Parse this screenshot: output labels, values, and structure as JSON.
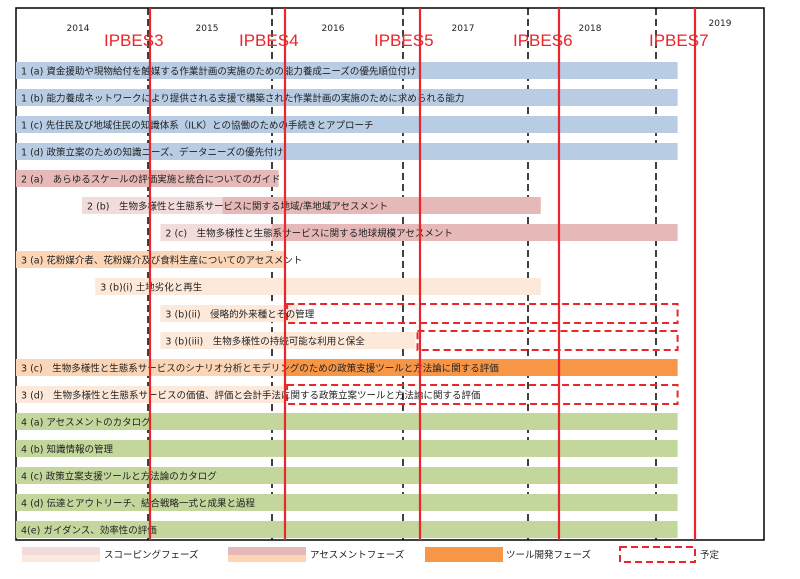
{
  "years": [
    "2014",
    "2015",
    "2016",
    "2017",
    "2018",
    "2019"
  ],
  "meetings": [
    "IPBES3",
    "IPBES4",
    "IPBES5",
    "IPBES6",
    "IPBES7"
  ],
  "colors": {
    "blue": "#b8cce4",
    "scoping_pink": "#f2dcdb",
    "assessment_pink": "#e6b9b8",
    "scoping_orange": "#fde9d9",
    "assessment_orange": "#fbd5b5",
    "tool_orange": "#f79646",
    "green": "#c3d69b",
    "planned_red": "#e8262b",
    "meeting_red": "#e8262b"
  },
  "tasks": [
    {
      "label": "1 (a) 資金援助や現物給付を触媒する作業計画の実施のための能力養成ニーズの優先順位付け",
      "color": "blue",
      "start": 2014.0,
      "end": 2019.2
    },
    {
      "label": "1 (b) 能力養成ネットワークにより提供される支援で構築された作業計画の実施のために求められる能力",
      "color": "blue",
      "start": 2014.0,
      "end": 2019.2
    },
    {
      "label": "1 (c) 先住民及び地域住民の知識体系（ILK）との協働のための手続きとアプローチ",
      "color": "blue",
      "start": 2014.0,
      "end": 2019.2
    },
    {
      "label": "1 (d) 政策立案のための知識ニーズ、データニーズの優先付け",
      "color": "blue",
      "start": 2014.0,
      "end": 2019.2
    },
    {
      "label": "2 (a)　あらゆるスケールの評価実施と統合についてのガイド",
      "color": "assessment_pink",
      "start": 2014.0,
      "end": 2016.05
    },
    {
      "label": "2 (b)　生物多様性と生態系サービスに関する地域/準地域アセスメント",
      "color": "assessment_pink",
      "start": 2014.5,
      "end": 2018.1,
      "segments": [
        {
          "color": "scoping_pink",
          "start": 2014.5,
          "end": 2015.6
        },
        {
          "color": "assessment_pink",
          "start": 2015.6,
          "end": 2018.1
        }
      ]
    },
    {
      "label": "2 (c)　生物多様性と生態系サービスに関する地球規模アセスメント",
      "color": "assessment_pink",
      "start": 2015.1,
      "end": 2019.2,
      "segments": [
        {
          "color": "scoping_pink",
          "start": 2015.1,
          "end": 2016.0
        },
        {
          "color": "assessment_pink",
          "start": 2016.0,
          "end": 2019.2
        }
      ]
    },
    {
      "label": "3 (a) 花粉媒介者、花粉媒介及び食料生産についてのアセスメント",
      "color": "assessment_orange",
      "start": 2014.0,
      "end": 2016.1
    },
    {
      "label": "3 (b)(i) 土地劣化と再生",
      "color": "scoping_orange",
      "start": 2014.6,
      "end": 2018.1
    },
    {
      "label": "3 (b)(ii)　侵略的外来種とその管理",
      "color": "scoping_orange",
      "start": 2015.1,
      "end": 2016.2,
      "planned": [
        2016.1,
        2019.2
      ]
    },
    {
      "label": "3 (b)(iii)　生物多様性の持続可能な利用と保全",
      "color": "scoping_orange",
      "start": 2015.1,
      "end": 2017.1,
      "planned": [
        2017.1,
        2019.2
      ]
    },
    {
      "label": "3 (c)　生物多様性と生態系サービスのシナリオ分析とモデリングのための政策支援ツールと方法論に関する評価",
      "color": "tool_orange",
      "start": 2014.0,
      "end": 2019.2,
      "segments": [
        {
          "color": "assessment_orange",
          "start": 2014.0,
          "end": 2016.1
        },
        {
          "color": "tool_orange",
          "start": 2016.1,
          "end": 2019.2
        }
      ]
    },
    {
      "label": "3 (d)　生物多様性と生態系サービスの価値、評価と会計手法に関する政策立案ツールと方法論に関する評価",
      "color": "scoping_orange",
      "start": 2014.0,
      "end": 2016.1,
      "planned": [
        2016.1,
        2019.2
      ]
    },
    {
      "label": "4 (a) アセスメントのカタログ",
      "color": "green",
      "start": 2014.0,
      "end": 2019.2
    },
    {
      "label": "4 (b) 知識情報の管理",
      "color": "green",
      "start": 2014.0,
      "end": 2019.2
    },
    {
      "label": "4 (c) 政策立案支援ツールと方法論のカタログ",
      "color": "green",
      "start": 2014.0,
      "end": 2019.2
    },
    {
      "label": "4 (d) 伝達とアウトリーチ、結合戦略一式と成果と過程",
      "color": "green",
      "start": 2014.0,
      "end": 2019.2
    },
    {
      "label": "4(e) ガイダンス、効率性の評価",
      "color": "green",
      "start": 2014.0,
      "end": 2019.2
    }
  ],
  "legend": [
    {
      "label": "スコーピングフェーズ",
      "kind": "scoping"
    },
    {
      "label": "アセスメントフェーズ",
      "kind": "assessment"
    },
    {
      "label": "ツール開発フェーズ",
      "kind": "tool"
    },
    {
      "label": "予定",
      "kind": "planned"
    }
  ]
}
